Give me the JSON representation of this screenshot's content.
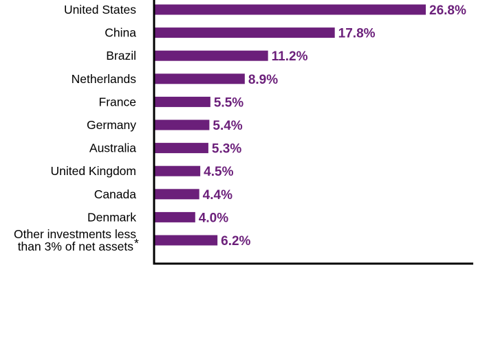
{
  "chart_data": {
    "type": "bar",
    "orientation": "horizontal",
    "categories": [
      "United States",
      "China",
      "Brazil",
      "Netherlands",
      "France",
      "Germany",
      "Australia",
      "United Kingdom",
      "Canada",
      "Denmark",
      "Other investments less than 3% of net assets*"
    ],
    "category_lines": [
      [
        "United States"
      ],
      [
        "China"
      ],
      [
        "Brazil"
      ],
      [
        "Netherlands"
      ],
      [
        "France"
      ],
      [
        "Germany"
      ],
      [
        "Australia"
      ],
      [
        "United Kingdom"
      ],
      [
        "Canada"
      ],
      [
        "Denmark"
      ],
      [
        "Other investments less",
        "than 3% of net assets"
      ]
    ],
    "footnote_mark": "*",
    "values": [
      26.8,
      17.8,
      11.2,
      8.9,
      5.5,
      5.4,
      5.3,
      4.5,
      4.4,
      4.0,
      6.2
    ],
    "value_labels": [
      "26.8%",
      "17.8%",
      "11.2%",
      "8.9%",
      "5.5%",
      "5.4%",
      "5.3%",
      "4.5%",
      "4.4%",
      "4.0%",
      "6.2%"
    ],
    "title": "",
    "xlabel": "",
    "ylabel": "",
    "xlim": [
      0,
      31.5
    ],
    "grid": false,
    "legend": "none",
    "colors": {
      "bar": "#6b1f7a",
      "label": "#6b1f7a",
      "axis": "#000000"
    }
  }
}
